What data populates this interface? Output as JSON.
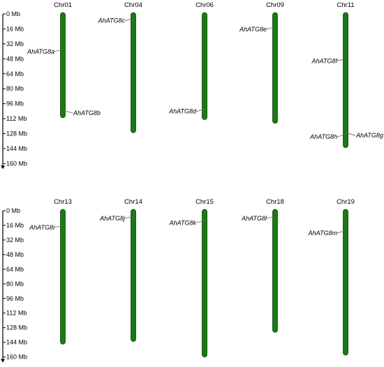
{
  "panels": [
    {
      "ticks": [
        "0 Mb",
        "16 Mb",
        "32 Mb",
        "48 Mb",
        "64 Mb",
        "80 Mb",
        "96 Mb",
        "112 Mb",
        "128 Mb",
        "144 Mb",
        "160 Mb"
      ],
      "chromosomes": [
        {
          "name": "Chr01",
          "length_mb": 111,
          "genes": [
            {
              "name": "AhATG8a",
              "pos_mb": 38,
              "side": "left"
            },
            {
              "name": "AhATG8b",
              "pos_mb": 103,
              "side": "right"
            }
          ]
        },
        {
          "name": "Chr04",
          "length_mb": 127,
          "genes": [
            {
              "name": "AhATG8c",
              "pos_mb": 5,
              "side": "left"
            }
          ]
        },
        {
          "name": "Chr06",
          "length_mb": 113,
          "genes": [
            {
              "name": "AhATG8d",
              "pos_mb": 102,
              "side": "left"
            }
          ]
        },
        {
          "name": "Chr09",
          "length_mb": 117,
          "genes": [
            {
              "name": "AhATG8e",
              "pos_mb": 14,
              "side": "left"
            }
          ]
        },
        {
          "name": "Chr11",
          "length_mb": 143,
          "genes": [
            {
              "name": "AhATG8f",
              "pos_mb": 48,
              "side": "left"
            },
            {
              "name": "AhATG8h",
              "pos_mb": 129,
              "side": "left"
            },
            {
              "name": "AhATG8g",
              "pos_mb": 127,
              "side": "right"
            }
          ]
        }
      ]
    },
    {
      "ticks": [
        "0 Mb",
        "16 Mb",
        "32 Mb",
        "48 Mb",
        "64 Mb",
        "80 Mb",
        "96 Mb",
        "112 Mb",
        "128 Mb",
        "144 Mb",
        "160 Mb"
      ],
      "chromosomes": [
        {
          "name": "Chr13",
          "length_mb": 146,
          "genes": [
            {
              "name": "AhATG8i",
              "pos_mb": 16,
              "side": "left"
            }
          ]
        },
        {
          "name": "Chr14",
          "length_mb": 143,
          "genes": [
            {
              "name": "AhATG8j",
              "pos_mb": 6,
              "side": "left"
            }
          ]
        },
        {
          "name": "Chr15",
          "length_mb": 160,
          "genes": [
            {
              "name": "AhATG8k",
              "pos_mb": 11,
              "side": "left"
            }
          ]
        },
        {
          "name": "Chr18",
          "length_mb": 133,
          "genes": [
            {
              "name": "AhATG8l",
              "pos_mb": 6,
              "side": "left"
            }
          ]
        },
        {
          "name": "Chr19",
          "length_mb": 158,
          "genes": [
            {
              "name": "AhATG8m",
              "pos_mb": 22,
              "side": "left"
            }
          ]
        }
      ]
    }
  ],
  "colors": {
    "chromosome_fill": "#1a7a12",
    "chromosome_stroke": "#0d3d08",
    "axis": "#000000",
    "gene_line": "#666666",
    "text": "#000000"
  }
}
